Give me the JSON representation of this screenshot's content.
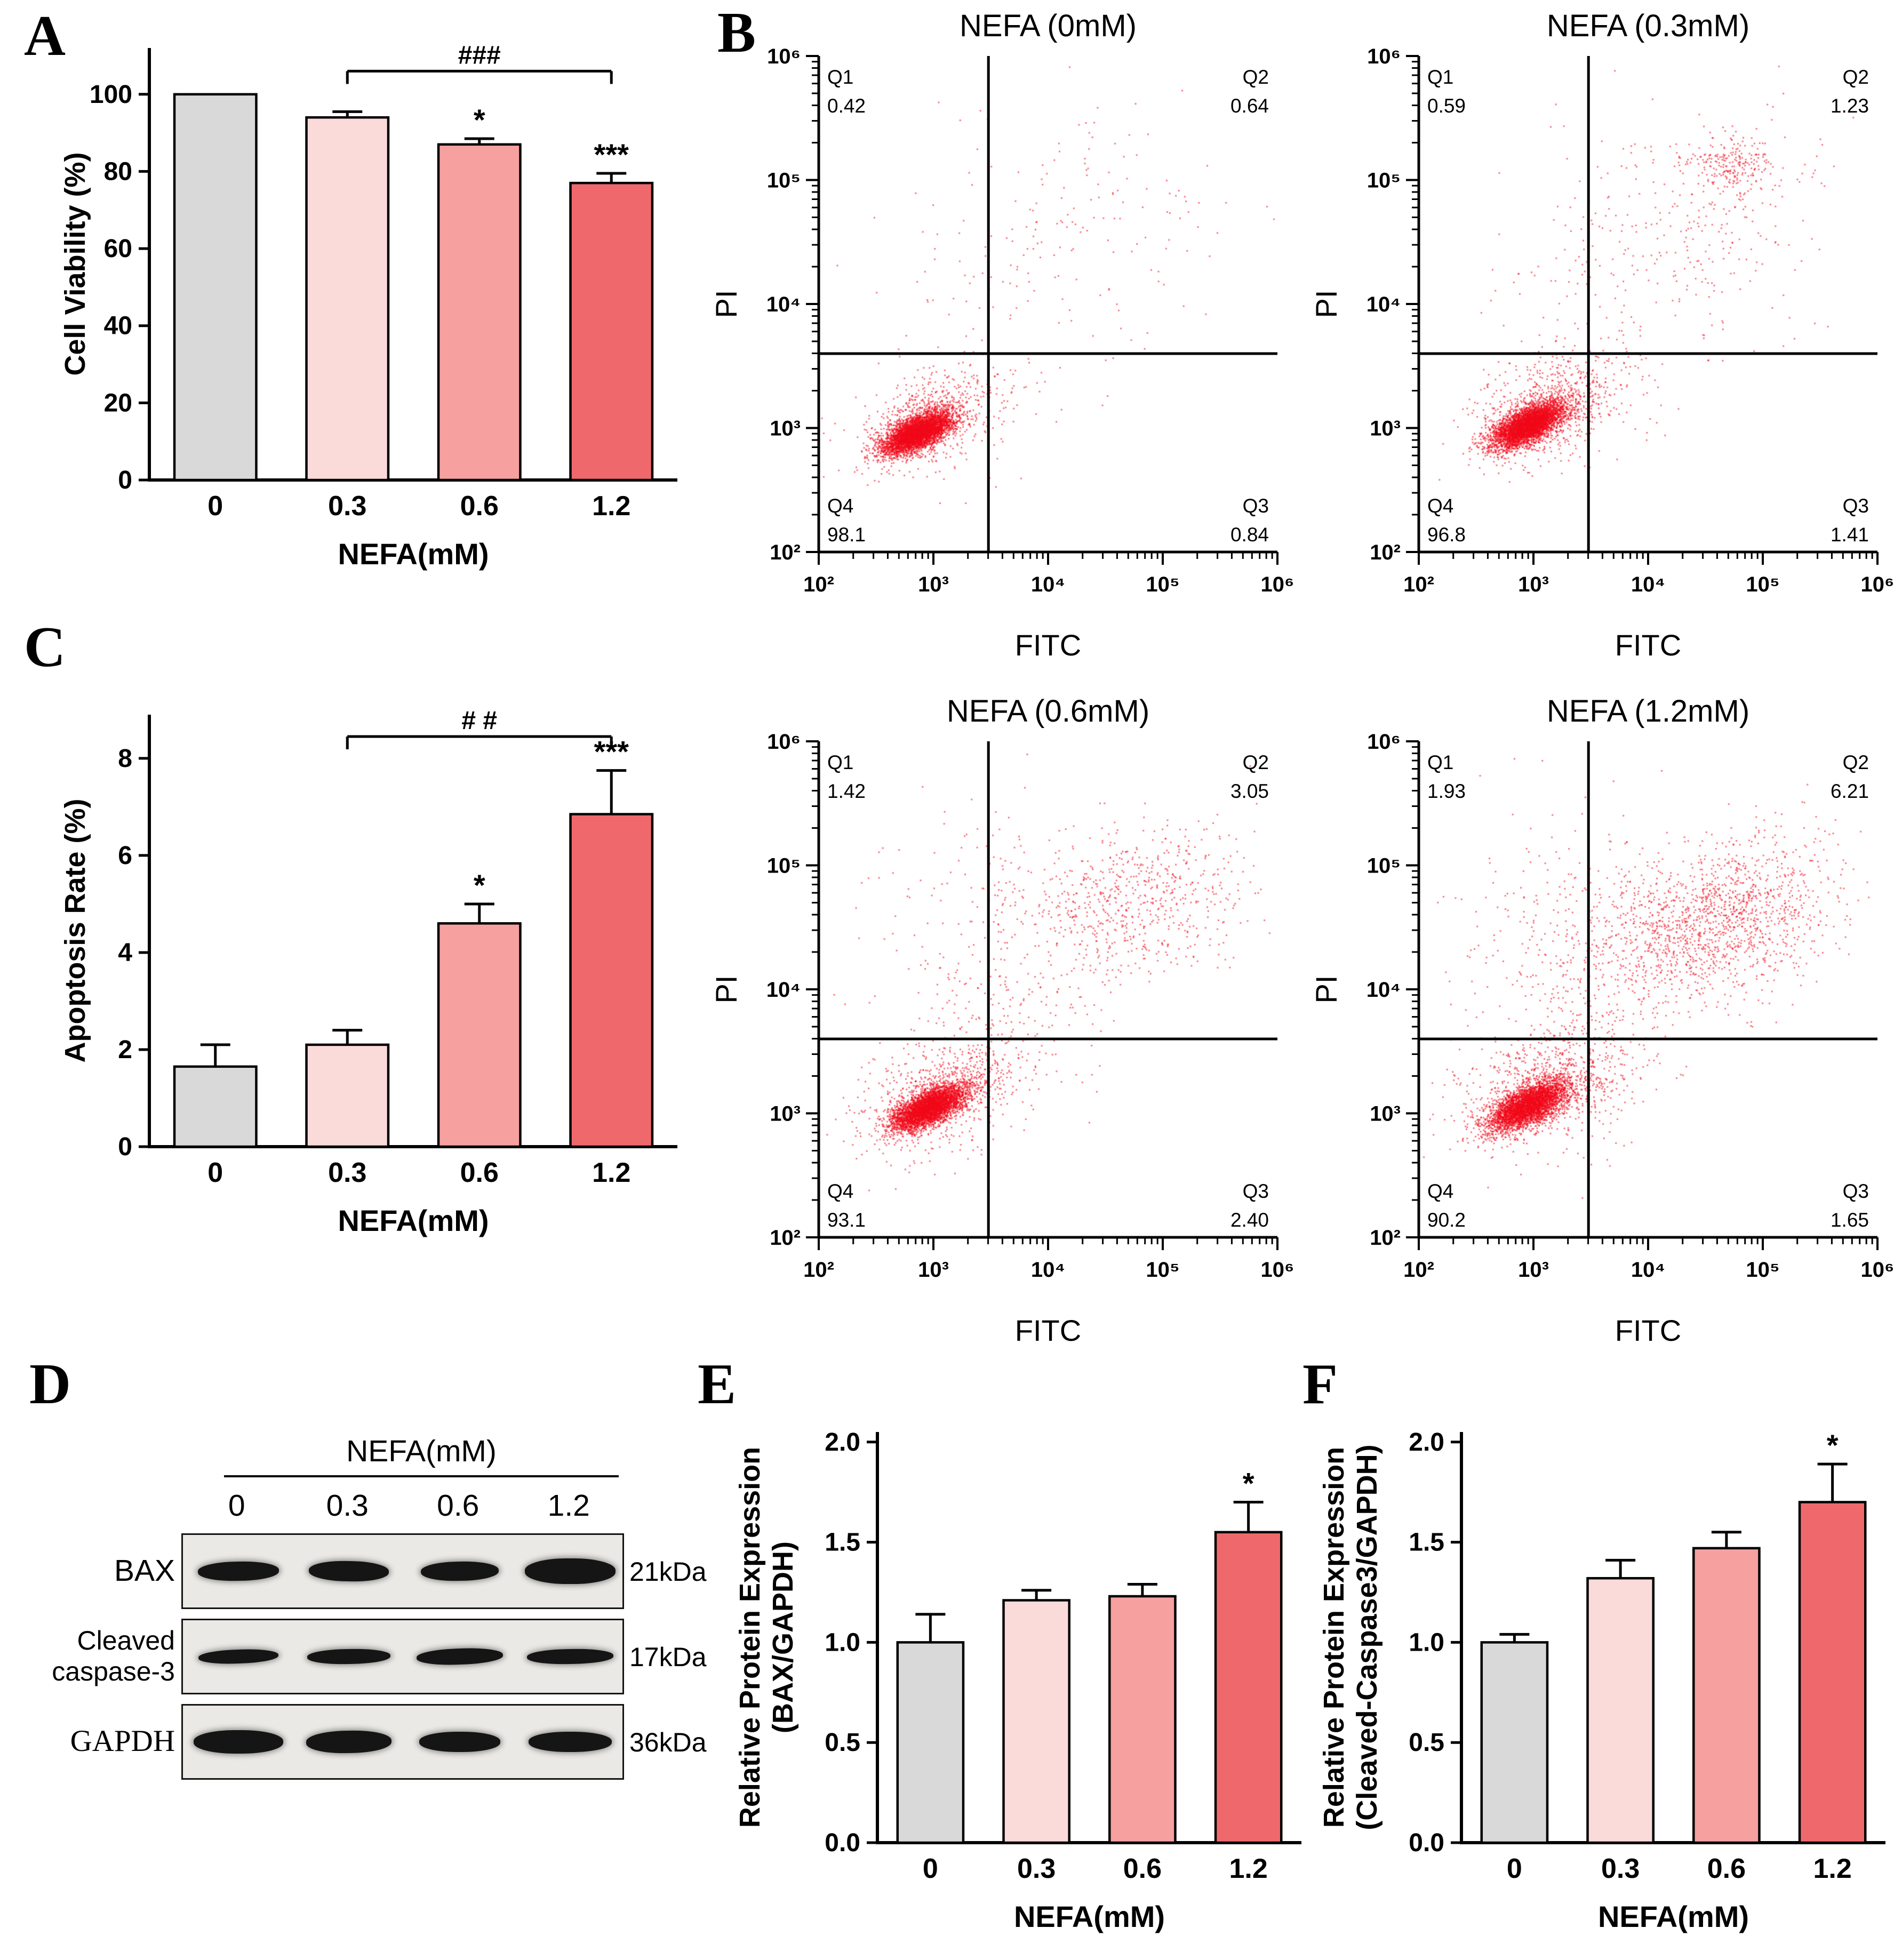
{
  "panels": {
    "a": "A",
    "b": "B",
    "c": "C",
    "d": "D",
    "e": "E",
    "f": "F"
  },
  "blot": {
    "header": "NEFA(mM)",
    "lanes": [
      "0",
      "0.3",
      "0.6",
      "1.2"
    ],
    "rows": [
      {
        "label": "BAX",
        "kda": "21kDa",
        "bands": [
          {
            "w": 152,
            "h": 36,
            "r": -1
          },
          {
            "w": 150,
            "h": 38,
            "r": 1
          },
          {
            "w": 146,
            "h": 36,
            "r": -1
          },
          {
            "w": 170,
            "h": 48,
            "r": 0
          }
        ]
      },
      {
        "label": "Cleaved caspase-3",
        "kda": "17kDa",
        "bands": [
          {
            "w": 150,
            "h": 26,
            "r": -2
          },
          {
            "w": 156,
            "h": 28,
            "r": -1
          },
          {
            "w": 162,
            "h": 30,
            "r": -2
          },
          {
            "w": 162,
            "h": 28,
            "r": -1
          }
        ]
      },
      {
        "label": "GAPDH",
        "kda": "36kDa",
        "bands": [
          {
            "w": 168,
            "h": 44,
            "r": 0
          },
          {
            "w": 160,
            "h": 42,
            "r": -1
          },
          {
            "w": 152,
            "h": 38,
            "r": 0
          },
          {
            "w": 156,
            "h": 38,
            "r": 0
          }
        ]
      }
    ]
  },
  "chart_data": [
    {
      "id": "viability",
      "type": "bar",
      "panel": "A",
      "title": "",
      "xlabel": "NEFA(mM)",
      "ylabel_lines": [
        "Cell Viability (%)"
      ],
      "categories": [
        "0",
        "0.3",
        "0.6",
        "1.2"
      ],
      "values": [
        100,
        94,
        87,
        77
      ],
      "errors": [
        0,
        1.5,
        1.5,
        2.5
      ],
      "ylim": [
        0,
        112
      ],
      "yticks": [
        0,
        20,
        40,
        60,
        80,
        100
      ],
      "ydecimals": 0,
      "bar_colors": [
        "#d9d9d9",
        "#fbdada",
        "#f6a0a0",
        "#ef696c"
      ],
      "sig": [
        "",
        "",
        "*",
        "***"
      ],
      "bracket": {
        "from": 1,
        "to": 3,
        "y": 106,
        "label": "###"
      }
    },
    {
      "id": "flow0",
      "type": "scatter",
      "panel": "B",
      "title": "NEFA (0mM)",
      "xlabel": "FITC",
      "ylabel": "PI",
      "xticklabels": [
        "10²",
        "10³",
        "10⁴",
        "10⁵",
        "10⁶"
      ],
      "yticklabels": [
        "10²",
        "10³",
        "10⁴",
        "10⁵",
        "10⁶"
      ],
      "xlim_log": [
        2,
        6
      ],
      "ylim_log": [
        2,
        6
      ],
      "gate_x": 3.48,
      "gate_y": 3.6,
      "quadrants": {
        "Q1": "0.42",
        "Q2": "0.64",
        "Q3": "0.84",
        "Q4": "98.1"
      },
      "point_color": "rgba(240,10,25,0.55)",
      "seed": 7,
      "clusters": [
        {
          "n": 4200,
          "cx": 2.86,
          "cy": 2.97,
          "sx": 0.15,
          "sy": 0.12,
          "corr": 0.45
        },
        {
          "n": 700,
          "cx": 2.98,
          "cy": 3.08,
          "sx": 0.3,
          "sy": 0.26,
          "corr": 0.3
        },
        {
          "n": 90,
          "cx": 3.5,
          "cy": 4.1,
          "sx": 0.55,
          "sy": 0.6,
          "corr": 0
        },
        {
          "n": 120,
          "cx": 4.5,
          "cy": 4.75,
          "sx": 0.55,
          "sy": 0.5,
          "corr": 0
        }
      ]
    },
    {
      "id": "flow03",
      "type": "scatter",
      "panel": "B",
      "title": "NEFA (0.3mM)",
      "xlabel": "FITC",
      "ylabel": "PI",
      "xticklabels": [
        "10²",
        "10³",
        "10⁴",
        "10⁵",
        "10⁶"
      ],
      "yticklabels": [
        "10²",
        "10³",
        "10⁴",
        "10⁵",
        "10⁶"
      ],
      "xlim_log": [
        2,
        6
      ],
      "ylim_log": [
        2,
        6
      ],
      "gate_x": 3.48,
      "gate_y": 3.6,
      "quadrants": {
        "Q1": "0.59",
        "Q2": "1.23",
        "Q3": "1.41",
        "Q4": "96.8"
      },
      "point_color": "rgba(240,10,25,0.55)",
      "seed": 13,
      "clusters": [
        {
          "n": 4200,
          "cx": 2.95,
          "cy": 3.03,
          "sx": 0.16,
          "sy": 0.13,
          "corr": 0.45
        },
        {
          "n": 800,
          "cx": 3.1,
          "cy": 3.15,
          "sx": 0.34,
          "sy": 0.28,
          "corr": 0.3
        },
        {
          "n": 230,
          "cx": 4.72,
          "cy": 5.12,
          "sx": 0.2,
          "sy": 0.13,
          "corr": 0
        },
        {
          "n": 260,
          "cx": 4.45,
          "cy": 4.7,
          "sx": 0.6,
          "sy": 0.5,
          "corr": 0
        },
        {
          "n": 120,
          "cx": 3.6,
          "cy": 4.0,
          "sx": 0.5,
          "sy": 0.55,
          "corr": 0
        }
      ]
    },
    {
      "id": "flow06",
      "type": "scatter",
      "panel": "B",
      "title": "NEFA (0.6mM)",
      "xlabel": "FITC",
      "ylabel": "PI",
      "xticklabels": [
        "10²",
        "10³",
        "10⁴",
        "10⁵",
        "10⁶"
      ],
      "yticklabels": [
        "10²",
        "10³",
        "10⁴",
        "10⁵",
        "10⁶"
      ],
      "xlim_log": [
        2,
        6
      ],
      "ylim_log": [
        2,
        6
      ],
      "gate_x": 3.48,
      "gate_y": 3.6,
      "quadrants": {
        "Q1": "1.42",
        "Q2": "3.05",
        "Q3": "2.40",
        "Q4": "93.1"
      },
      "point_color": "rgba(240,10,25,0.55)",
      "seed": 21,
      "clusters": [
        {
          "n": 3900,
          "cx": 2.95,
          "cy": 3.05,
          "sx": 0.16,
          "sy": 0.13,
          "corr": 0.45
        },
        {
          "n": 800,
          "cx": 3.1,
          "cy": 3.18,
          "sx": 0.35,
          "sy": 0.3,
          "corr": 0.3
        },
        {
          "n": 700,
          "cx": 4.75,
          "cy": 4.72,
          "sx": 0.55,
          "sy": 0.38,
          "corr": 0.2
        },
        {
          "n": 300,
          "cx": 3.5,
          "cy": 4.2,
          "sx": 0.55,
          "sy": 0.6,
          "corr": 0
        }
      ]
    },
    {
      "id": "flow12",
      "type": "scatter",
      "panel": "B",
      "title": "NEFA (1.2mM)",
      "xlabel": "FITC",
      "ylabel": "PI",
      "xticklabels": [
        "10²",
        "10³",
        "10⁴",
        "10⁵",
        "10⁶"
      ],
      "yticklabels": [
        "10²",
        "10³",
        "10⁴",
        "10⁵",
        "10⁶"
      ],
      "xlim_log": [
        2,
        6
      ],
      "ylim_log": [
        2,
        6
      ],
      "gate_x": 3.48,
      "gate_y": 3.6,
      "quadrants": {
        "Q1": "1.93",
        "Q2": "6.21",
        "Q3": "1.65",
        "Q4": "90.2"
      },
      "point_color": "rgba(240,10,25,0.55)",
      "seed": 35,
      "clusters": [
        {
          "n": 3700,
          "cx": 2.95,
          "cy": 3.07,
          "sx": 0.17,
          "sy": 0.14,
          "corr": 0.45
        },
        {
          "n": 900,
          "cx": 3.12,
          "cy": 3.22,
          "sx": 0.38,
          "sy": 0.32,
          "corr": 0.3
        },
        {
          "n": 1500,
          "cx": 4.55,
          "cy": 4.55,
          "sx": 0.55,
          "sy": 0.42,
          "corr": 0.25
        },
        {
          "n": 400,
          "cx": 3.4,
          "cy": 4.3,
          "sx": 0.55,
          "sy": 0.55,
          "corr": 0
        }
      ]
    },
    {
      "id": "apoptosis",
      "type": "bar",
      "panel": "C",
      "title": "",
      "xlabel": "NEFA(mM)",
      "ylabel_lines": [
        "Apoptosis Rate (%)"
      ],
      "categories": [
        "0",
        "0.3",
        "0.6",
        "1.2"
      ],
      "values": [
        1.65,
        2.1,
        4.6,
        6.85
      ],
      "errors": [
        0.45,
        0.3,
        0.4,
        0.9
      ],
      "ylim": [
        0,
        8.9
      ],
      "yticks": [
        0,
        2,
        4,
        6,
        8
      ],
      "ydecimals": 0,
      "bar_colors": [
        "#d9d9d9",
        "#fbdada",
        "#f6a0a0",
        "#ef696c"
      ],
      "sig": [
        "",
        "",
        "*",
        "***"
      ],
      "bracket": {
        "from": 1,
        "to": 3,
        "y": 8.45,
        "label": "# #"
      }
    },
    {
      "id": "bax",
      "type": "bar",
      "panel": "E",
      "title": "",
      "xlabel": "NEFA(mM)",
      "ylabel_lines": [
        "Relative Protein Expression",
        "(BAX/GAPDH)"
      ],
      "categories": [
        "0",
        "0.3",
        "0.6",
        "1.2"
      ],
      "values": [
        1.0,
        1.21,
        1.23,
        1.55
      ],
      "errors": [
        0.14,
        0.05,
        0.06,
        0.15
      ],
      "ylim": [
        0,
        2.05
      ],
      "yticks": [
        0,
        0.5,
        1.0,
        1.5,
        2.0
      ],
      "ydecimals": 1,
      "bar_colors": [
        "#d9d9d9",
        "#fbdada",
        "#f6a0a0",
        "#ef696c"
      ],
      "sig": [
        "",
        "",
        "",
        "*"
      ],
      "bracket": null
    },
    {
      "id": "casp",
      "type": "bar",
      "panel": "F",
      "title": "",
      "xlabel": "NEFA(mM)",
      "ylabel_lines": [
        "Relative Protein Expression",
        "(Cleaved-Caspase3/GAPDH)"
      ],
      "categories": [
        "0",
        "0.3",
        "0.6",
        "1.2"
      ],
      "values": [
        1.0,
        1.32,
        1.47,
        1.7
      ],
      "errors": [
        0.04,
        0.09,
        0.08,
        0.19
      ],
      "ylim": [
        0,
        2.05
      ],
      "yticks": [
        0,
        0.5,
        1.0,
        1.5,
        2.0
      ],
      "ydecimals": 1,
      "bar_colors": [
        "#d9d9d9",
        "#fbdada",
        "#f6a0a0",
        "#ef696c"
      ],
      "sig": [
        "",
        "",
        "",
        "*"
      ],
      "bracket": null
    }
  ]
}
